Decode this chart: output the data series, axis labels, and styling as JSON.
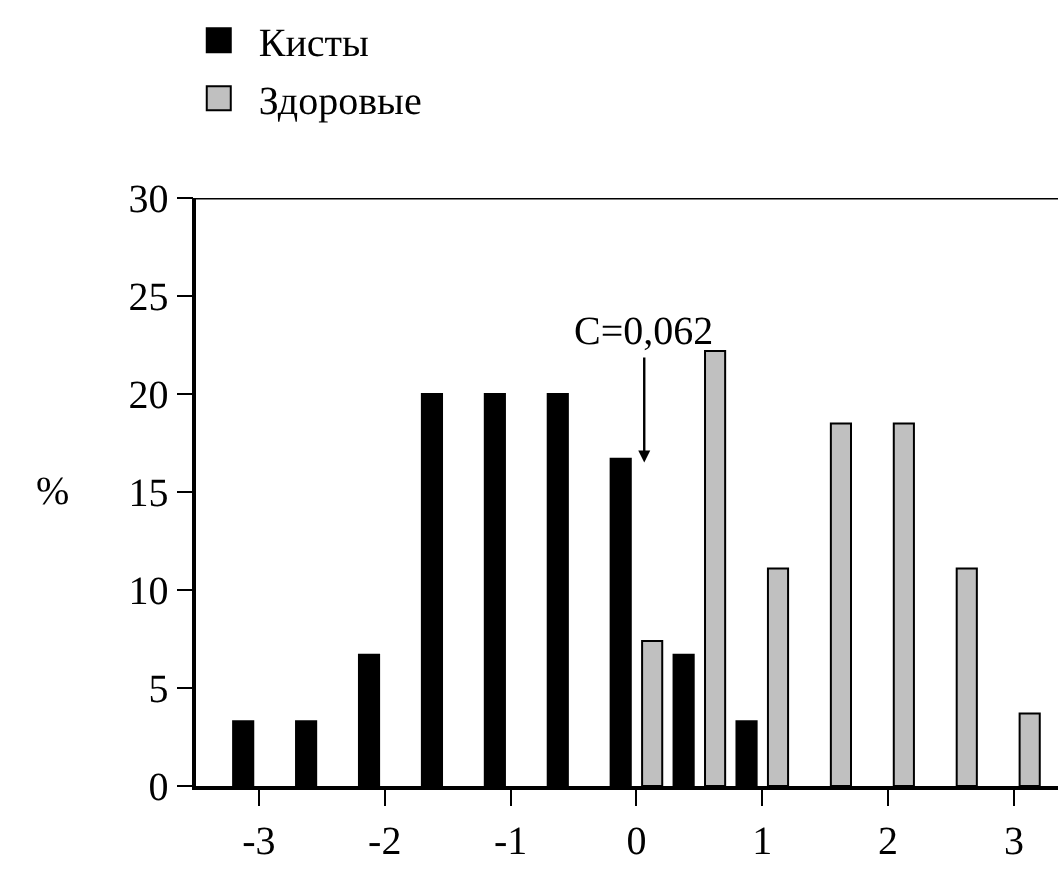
{
  "chart_data": {
    "type": "bar",
    "ylabel": "%",
    "x": [
      -3,
      -2.5,
      -2,
      -1.5,
      -1,
      -0.5,
      0,
      0.5,
      1,
      1.5,
      2,
      2.5,
      3
    ],
    "series": [
      {
        "name": "Кисты",
        "color": "#000000",
        "values": [
          3.3,
          3.3,
          6.7,
          20,
          20,
          20,
          16.7,
          6.7,
          3.3,
          null,
          null,
          null,
          null
        ]
      },
      {
        "name": "Здоровые",
        "color": "#c0c0c0",
        "values": [
          null,
          null,
          null,
          null,
          null,
          null,
          7.4,
          22.2,
          11.1,
          18.5,
          18.5,
          11.1,
          3.7
        ]
      }
    ],
    "xlim": [
      -3.5,
      3.35
    ],
    "xticks": [
      -3,
      -2,
      -1,
      0,
      1,
      2,
      3
    ],
    "ylim": [
      0,
      30
    ],
    "yticks": [
      0,
      5,
      10,
      15,
      20,
      25,
      30
    ],
    "annotations": [
      "C=0,062"
    ],
    "legend": "top left"
  }
}
